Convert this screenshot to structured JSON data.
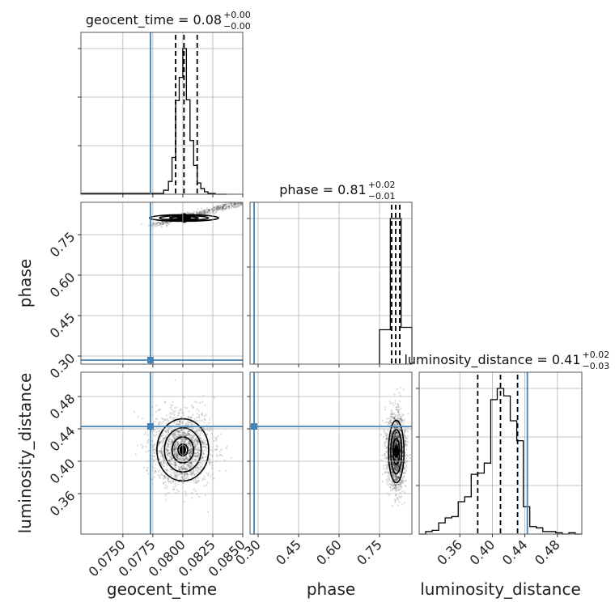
{
  "chart_data": {
    "type": "corner",
    "truth_color": "#4682b4",
    "parameters": [
      {
        "name": "geocent_time",
        "axis_label": "geocent_time",
        "range": [
          0.0715,
          0.085
        ],
        "ticks": [
          0.075,
          0.0775,
          0.08,
          0.0825,
          0.085
        ],
        "tick_labels": [
          "0.0750",
          "0.0775",
          "0.0800",
          "0.0825",
          "0.0850"
        ],
        "truth": 0.0773,
        "quantiles": [
          0.0794,
          0.0801,
          0.0812
        ],
        "title_main": "geocent_time = 0.08",
        "title_plus": "+0.00",
        "title_minus": "−0.00",
        "hist_edges": [
          0.0715,
          0.0784,
          0.0788,
          0.0791,
          0.0794,
          0.0797,
          0.08,
          0.0803,
          0.0806,
          0.0809,
          0.0812,
          0.0815,
          0.0818,
          0.0821,
          0.0824,
          0.0827,
          0.0837
        ],
        "hist_counts": [
          1,
          5,
          16,
          46,
          117,
          146,
          182,
          118,
          67,
          36,
          14,
          7,
          3,
          1,
          1,
          0
        ]
      },
      {
        "name": "phase",
        "axis_label": "phase",
        "range": [
          0.27,
          0.87
        ],
        "ticks": [
          0.3,
          0.45,
          0.6,
          0.75
        ],
        "tick_labels": [
          "0.30",
          "0.45",
          "0.60",
          "0.75"
        ],
        "truth": 0.285,
        "quantiles": [
          0.795,
          0.81,
          0.825
        ],
        "title_main": "phase = 0.81",
        "title_plus": "+0.02",
        "title_minus": "−0.01",
        "hist_edges": [
          0.75,
          0.79,
          0.83,
          0.87
        ],
        "hist_counts": [
          42,
          178,
          45
        ]
      },
      {
        "name": "luminosity_distance",
        "axis_label": "luminosity_distance",
        "range": [
          0.31,
          0.51
        ],
        "ticks": [
          0.36,
          0.4,
          0.44,
          0.48
        ],
        "tick_labels": [
          "0.36",
          "0.40",
          "0.44",
          "0.48"
        ],
        "truth": 0.443,
        "quantiles": [
          0.382,
          0.41,
          0.431
        ],
        "title_main": "luminosity_distance = 0.41",
        "title_plus": "+0.02",
        "title_minus": "−0.03",
        "hist_edges": [
          0.31,
          0.318,
          0.326,
          0.334,
          0.342,
          0.35,
          0.358,
          0.366,
          0.374,
          0.382,
          0.39,
          0.398,
          0.406,
          0.414,
          0.422,
          0.43,
          0.438,
          0.446,
          0.454,
          0.462,
          0.47,
          0.478,
          0.486,
          0.494,
          0.502,
          0.51
        ],
        "hist_counts": [
          0,
          2,
          3,
          9,
          13,
          14,
          26,
          30,
          48,
          49,
          57,
          108,
          117,
          111,
          91,
          75,
          22,
          6,
          5,
          2,
          2,
          1,
          0,
          1,
          0
        ]
      }
    ],
    "scatter": {
      "phase_vs_time": {
        "center": [
          0.0801,
          0.812
        ],
        "spread": [
          0.0006,
          0.005
        ],
        "tail": [
          [
            0.0775,
            0.785
          ],
          [
            0.085,
            0.87
          ]
        ]
      },
      "dist_vs_time": {
        "center": [
          0.08,
          0.414
        ],
        "spread": [
          0.0009,
          0.016
        ]
      },
      "dist_vs_phase": {
        "center": [
          0.812,
          0.412
        ],
        "spread": [
          0.012,
          0.016
        ]
      }
    }
  }
}
